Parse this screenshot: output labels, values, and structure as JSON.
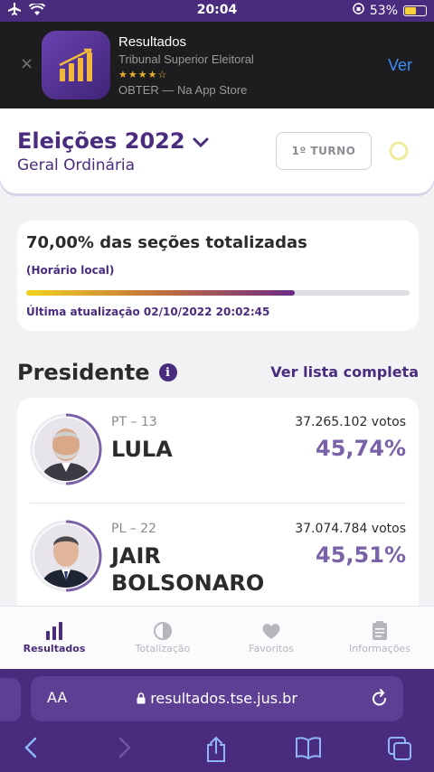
{
  "status_bar": {
    "time": "20:04",
    "battery": "53%"
  },
  "app_banner": {
    "app_name": "Resultados",
    "developer": "Tribunal Superior Eleitoral",
    "rating_stars": "★★★★☆",
    "get_text": "OBTER — Na App Store",
    "view_label": "Ver",
    "close_icon": "×"
  },
  "header": {
    "title": "Eleições 2022",
    "subtitle": "Geral Ordinária",
    "turno_label": "1º TURNO"
  },
  "progress": {
    "headline": "70,00% das seções totalizadas",
    "local_time_label": "(Horário local)",
    "fraction": 0.7,
    "last_update": "Última atualização 02/10/2022 20:02:45"
  },
  "section": {
    "title": "Presidente",
    "info_icon": "i",
    "see_all": "Ver lista completa"
  },
  "candidates": [
    {
      "party": "PT – 13",
      "name": "LULA",
      "votes": "37.265.102 votos",
      "percent": "45,74%"
    },
    {
      "party": "PL – 22",
      "name": "JAIR BOLSONARO",
      "votes": "37.074.784 votos",
      "percent": "45,51%"
    }
  ],
  "tabs": [
    {
      "label": "Resultados",
      "icon": "bar-chart-icon",
      "active": true
    },
    {
      "label": "Totalização",
      "icon": "pie-icon",
      "active": false
    },
    {
      "label": "Favoritos",
      "icon": "heart-icon",
      "active": false
    },
    {
      "label": "Informações",
      "icon": "document-icon",
      "active": false
    }
  ],
  "browser": {
    "aa_label": "AA",
    "url": "resultados.tse.jus.br"
  },
  "colors": {
    "brand": "#4a2c7e",
    "accent": "#7a62a8",
    "progress_start": "#f1d31e",
    "progress_end": "#6b2a85"
  }
}
